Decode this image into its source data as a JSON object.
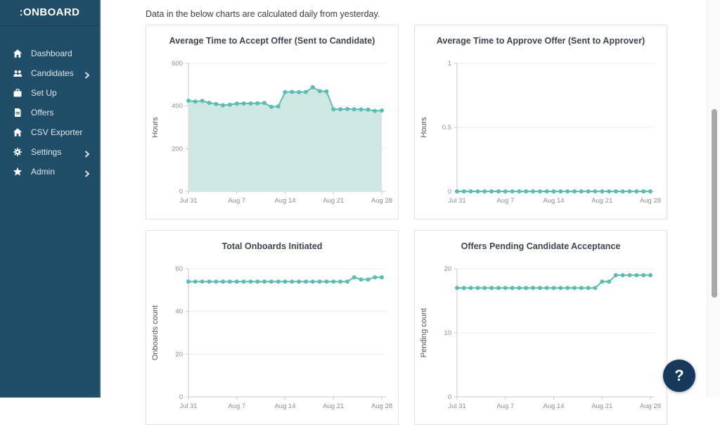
{
  "sidebar": {
    "logo": ":ONBOARD",
    "items": [
      {
        "label": "Dashboard",
        "icon": "home-icon",
        "chevron": false
      },
      {
        "label": "Candidates",
        "icon": "users-icon",
        "chevron": true
      },
      {
        "label": "Set Up",
        "icon": "briefcase-icon",
        "chevron": false
      },
      {
        "label": "Offers",
        "icon": "file-icon",
        "chevron": false
      },
      {
        "label": "CSV Exporter",
        "icon": "home-icon",
        "chevron": false
      },
      {
        "label": "Settings",
        "icon": "gear-icon",
        "chevron": true
      },
      {
        "label": "Admin",
        "icon": "star-icon",
        "chevron": true
      }
    ]
  },
  "main": {
    "intro": "Data in the below charts are calculated daily from yesterday."
  },
  "help": {
    "label": "?"
  },
  "colors": {
    "sidebar_bg": "#204e68",
    "accent_teal": "#5cbcb2",
    "area_fill": "#cfe7e3",
    "help_bg": "#17395b",
    "grid": "#ececec",
    "axis": "#c9c9c9"
  },
  "chart_data": [
    {
      "type": "area",
      "title": "Average Time to Accept Offer (Sent to Candidate)",
      "xlabel": "",
      "ylabel": "Hours",
      "ylim": [
        0,
        600
      ],
      "yticks": [
        0,
        200,
        400,
        600
      ],
      "categories": [
        "Jul 31",
        "Aug 1",
        "Aug 2",
        "Aug 3",
        "Aug 4",
        "Aug 5",
        "Aug 6",
        "Aug 7",
        "Aug 8",
        "Aug 9",
        "Aug 10",
        "Aug 11",
        "Aug 12",
        "Aug 13",
        "Aug 14",
        "Aug 15",
        "Aug 16",
        "Aug 17",
        "Aug 18",
        "Aug 19",
        "Aug 20",
        "Aug 21",
        "Aug 22",
        "Aug 23",
        "Aug 24",
        "Aug 25",
        "Aug 26",
        "Aug 27",
        "Aug 28"
      ],
      "xtick_indices": [
        0,
        7,
        14,
        21,
        28
      ],
      "xtick_labels": [
        "Jul 31",
        "Aug 7",
        "Aug 14",
        "Aug 21",
        "Aug 28"
      ],
      "values": [
        425,
        421,
        424,
        415,
        409,
        404,
        406,
        411,
        412,
        412,
        413,
        414,
        396,
        398,
        465,
        466,
        465,
        466,
        488,
        470,
        468,
        385,
        385,
        386,
        385,
        384,
        383,
        377,
        379
      ],
      "grid": true,
      "legend": "none"
    },
    {
      "type": "line",
      "title": "Average Time to Approve Offer (Sent to Approver)",
      "xlabel": "",
      "ylabel": "Hours",
      "ylim": [
        0,
        1
      ],
      "yticks": [
        0,
        0.5,
        1
      ],
      "categories": [
        "Jul 31",
        "Aug 1",
        "Aug 2",
        "Aug 3",
        "Aug 4",
        "Aug 5",
        "Aug 6",
        "Aug 7",
        "Aug 8",
        "Aug 9",
        "Aug 10",
        "Aug 11",
        "Aug 12",
        "Aug 13",
        "Aug 14",
        "Aug 15",
        "Aug 16",
        "Aug 17",
        "Aug 18",
        "Aug 19",
        "Aug 20",
        "Aug 21",
        "Aug 22",
        "Aug 23",
        "Aug 24",
        "Aug 25",
        "Aug 26",
        "Aug 27",
        "Aug 28"
      ],
      "xtick_indices": [
        0,
        7,
        14,
        21,
        28
      ],
      "xtick_labels": [
        "Jul 31",
        "Aug 7",
        "Aug 14",
        "Aug 21",
        "Aug 28"
      ],
      "values": [
        0,
        0,
        0,
        0,
        0,
        0,
        0,
        0,
        0,
        0,
        0,
        0,
        0,
        0,
        0,
        0,
        0,
        0,
        0,
        0,
        0,
        0,
        0,
        0,
        0,
        0,
        0,
        0,
        0
      ],
      "grid": true,
      "legend": "none"
    },
    {
      "type": "line",
      "title": "Total Onboards Initiated",
      "xlabel": "",
      "ylabel": "Onboards count",
      "ylim": [
        0,
        60
      ],
      "yticks": [
        0,
        20,
        40,
        60
      ],
      "categories": [
        "Jul 31",
        "Aug 1",
        "Aug 2",
        "Aug 3",
        "Aug 4",
        "Aug 5",
        "Aug 6",
        "Aug 7",
        "Aug 8",
        "Aug 9",
        "Aug 10",
        "Aug 11",
        "Aug 12",
        "Aug 13",
        "Aug 14",
        "Aug 15",
        "Aug 16",
        "Aug 17",
        "Aug 18",
        "Aug 19",
        "Aug 20",
        "Aug 21",
        "Aug 22",
        "Aug 23",
        "Aug 24",
        "Aug 25",
        "Aug 26",
        "Aug 27",
        "Aug 28"
      ],
      "xtick_indices": [
        0,
        7,
        14,
        21,
        28
      ],
      "xtick_labels": [
        "Jul 31",
        "Aug 7",
        "Aug 14",
        "Aug 21",
        "Aug 28"
      ],
      "values": [
        54,
        54,
        54,
        54,
        54,
        54,
        54,
        54,
        54,
        54,
        54,
        54,
        54,
        54,
        54,
        54,
        54,
        54,
        54,
        54,
        54,
        54,
        54,
        54,
        56,
        55,
        55,
        56,
        56
      ],
      "grid": true,
      "legend": "none"
    },
    {
      "type": "line",
      "title": "Offers Pending Candidate Acceptance",
      "xlabel": "",
      "ylabel": "Pending count",
      "ylim": [
        0,
        20
      ],
      "yticks": [
        0,
        10,
        20
      ],
      "categories": [
        "Jul 31",
        "Aug 1",
        "Aug 2",
        "Aug 3",
        "Aug 4",
        "Aug 5",
        "Aug 6",
        "Aug 7",
        "Aug 8",
        "Aug 9",
        "Aug 10",
        "Aug 11",
        "Aug 12",
        "Aug 13",
        "Aug 14",
        "Aug 15",
        "Aug 16",
        "Aug 17",
        "Aug 18",
        "Aug 19",
        "Aug 20",
        "Aug 21",
        "Aug 22",
        "Aug 23",
        "Aug 24",
        "Aug 25",
        "Aug 26",
        "Aug 27",
        "Aug 28"
      ],
      "xtick_indices": [
        0,
        7,
        14,
        21,
        28
      ],
      "xtick_labels": [
        "Jul 31",
        "Aug 7",
        "Aug 14",
        "Aug 21",
        "Aug 28"
      ],
      "values": [
        17,
        17,
        17,
        17,
        17,
        17,
        17,
        17,
        17,
        17,
        17,
        17,
        17,
        17,
        17,
        17,
        17,
        17,
        17,
        17,
        17,
        18,
        18,
        19,
        19,
        19,
        19,
        19,
        19
      ],
      "grid": true,
      "legend": "none"
    }
  ]
}
